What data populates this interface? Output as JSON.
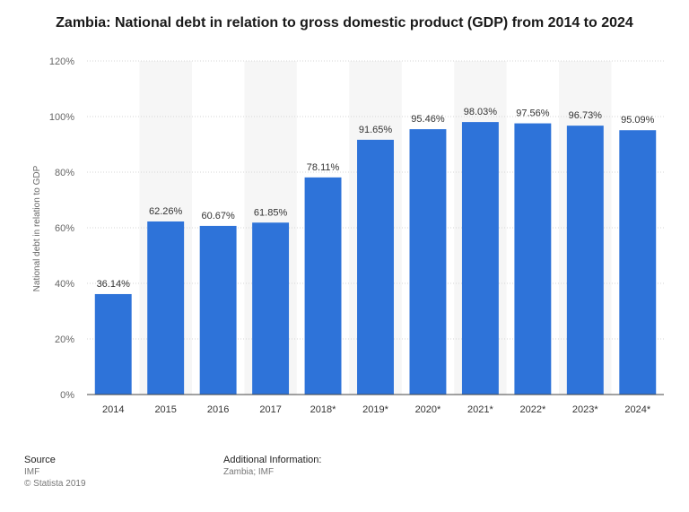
{
  "chart_data": {
    "type": "bar",
    "title": "Zambia: National debt in relation to gross domestic product (GDP) from 2014 to 2024",
    "xlabel": "",
    "ylabel": "National debt in relation to GDP",
    "categories": [
      "2014",
      "2015",
      "2016",
      "2017",
      "2018*",
      "2019*",
      "2020*",
      "2021*",
      "2022*",
      "2023*",
      "2024*"
    ],
    "values": [
      36.14,
      62.26,
      60.67,
      61.85,
      78.11,
      91.65,
      95.46,
      98.03,
      97.56,
      96.73,
      95.09
    ],
    "value_labels": [
      "36.14%",
      "62.26%",
      "60.67%",
      "61.85%",
      "78.11%",
      "91.65%",
      "95.46%",
      "98.03%",
      "97.56%",
      "96.73%",
      "95.09%"
    ],
    "ylim": [
      0,
      120
    ],
    "yticks": [
      0,
      20,
      40,
      60,
      80,
      100,
      120
    ],
    "ytick_labels": [
      "0%",
      "20%",
      "40%",
      "60%",
      "80%",
      "100%",
      "120%"
    ],
    "grid": true,
    "bar_color": "#2e73d9"
  },
  "footer": {
    "source_heading": "Source",
    "source_name": "IMF",
    "copyright": "© Statista 2019",
    "additional_heading": "Additional Information:",
    "additional_text": "Zambia; IMF"
  }
}
